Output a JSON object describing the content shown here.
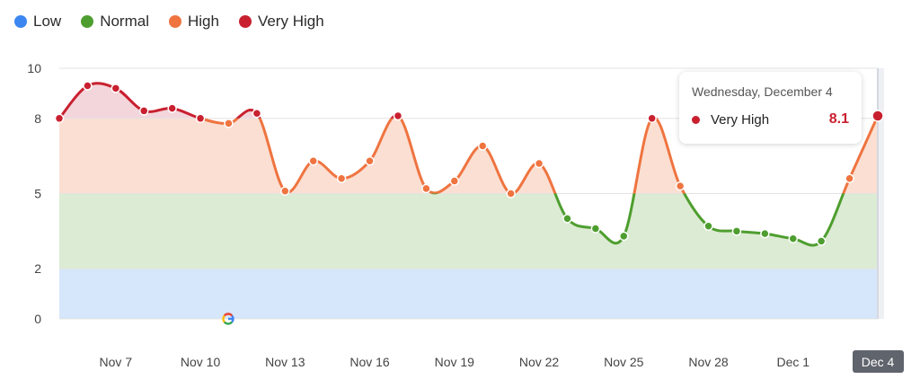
{
  "legend": [
    {
      "label": "Low",
      "color": "#3b86f0"
    },
    {
      "label": "Normal",
      "color": "#4e9e2f"
    },
    {
      "label": "High",
      "color": "#ef7440"
    },
    {
      "label": "Very High",
      "color": "#c9202f"
    }
  ],
  "tooltip": {
    "title": "Wednesday, December 4",
    "series": "Very High",
    "value": "8.1",
    "color": "#c9202f"
  },
  "google_icon": "google-g-icon",
  "chart_data": {
    "type": "line",
    "title": "",
    "xlabel": "",
    "ylabel": "",
    "ylim": [
      0,
      10
    ],
    "yticks": [
      0,
      2,
      5,
      8,
      10
    ],
    "x_tick_labels": [
      "Nov 7",
      "Nov 10",
      "Nov 13",
      "Nov 16",
      "Nov 19",
      "Nov 22",
      "Nov 25",
      "Nov 28",
      "Dec 1",
      "Dec 4"
    ],
    "x_tick_index": [
      2,
      5,
      8,
      11,
      14,
      17,
      20,
      23,
      26,
      29
    ],
    "highlighted_x": "Dec 4",
    "bands": [
      {
        "name": "Low",
        "from": 0,
        "to": 2,
        "color": "#d6e6fb"
      },
      {
        "name": "Normal",
        "from": 2,
        "to": 5,
        "color": "#dcebd3"
      },
      {
        "name": "High",
        "from": 5,
        "to": 8,
        "color": "#fbdfd2"
      },
      {
        "name": "Very High",
        "from": 8,
        "to": 10,
        "color": "#f3d6db"
      }
    ],
    "values": [
      8,
      9.3,
      9.2,
      8.3,
      8.4,
      8.0,
      7.8,
      8.2,
      5.1,
      6.3,
      5.6,
      6.3,
      8.1,
      5.2,
      5.5,
      6.9,
      5.0,
      6.2,
      4.0,
      3.6,
      3.3,
      8.0,
      5.3,
      3.7,
      3.5,
      3.4,
      3.2,
      3.1,
      5.6,
      8.1
    ]
  }
}
